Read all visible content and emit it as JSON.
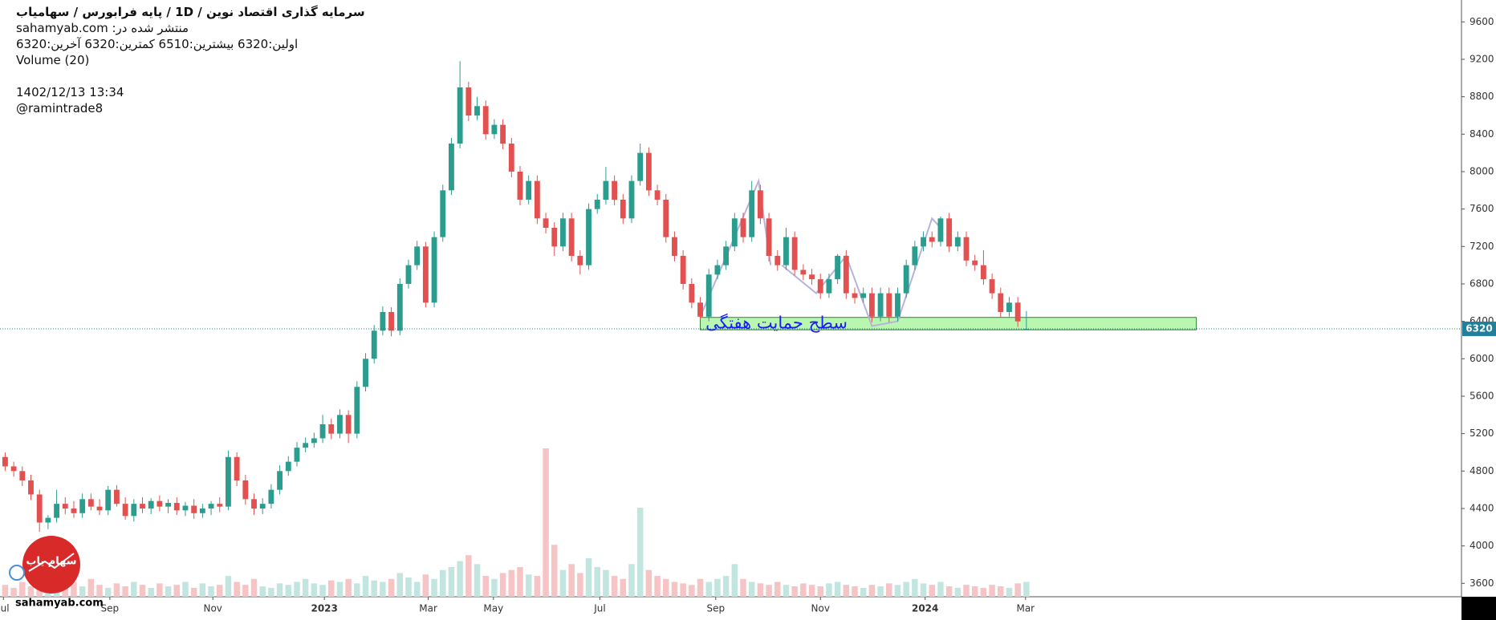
{
  "header": {
    "title": "سرمایه گذاری اقتصاد نوین /  1D  /  پایه فرابورس / سهامیاب",
    "published": "منتشر شده در: sahamyab.com",
    "ohlc_line": "اولین:6320  بیشترین:6510  کمترین:6320  آخرین:6320",
    "volume_label": "Volume (20)",
    "date": "1402/12/13 13:34",
    "author": "@ramintrade8"
  },
  "logo": {
    "name": "سهام یاب",
    "site": "sahamyab.com"
  },
  "chart_data": {
    "type": "candlestick",
    "up_color": "#2a9d8f",
    "down_color": "#e25050",
    "volume_up_color": "#c2e6df",
    "volume_down_color": "#f6c4c4",
    "xlim": [
      -0.6,
      169.7
    ],
    "ylim": [
      3457,
      9834
    ],
    "xticks": [
      {
        "value": -0.2,
        "label": "Jul"
      },
      {
        "value": 12.2,
        "label": "Sep"
      },
      {
        "value": 24.2,
        "label": "Nov"
      },
      {
        "value": 37.2,
        "label": "2023"
      },
      {
        "value": 49.3,
        "label": "Mar"
      },
      {
        "value": 56.9,
        "label": "May"
      },
      {
        "value": 69.3,
        "label": "Jul"
      },
      {
        "value": 82.8,
        "label": "Sep"
      },
      {
        "value": 95,
        "label": "Nov"
      },
      {
        "value": 107.2,
        "label": "2024"
      },
      {
        "value": 118.9,
        "label": "Mar"
      }
    ],
    "yticks": [
      3600,
      4000,
      4400,
      4800,
      5200,
      5600,
      6000,
      6400,
      6800,
      7200,
      7600,
      8000,
      8400,
      8800,
      9200,
      9600
    ],
    "last_price": 6320,
    "last_price_color": "#1f7f9c",
    "ohlc": [
      [
        4950,
        5000,
        4800,
        4850
      ],
      [
        4850,
        4900,
        4740,
        4800
      ],
      [
        4800,
        4850,
        4640,
        4700
      ],
      [
        4700,
        4760,
        4490,
        4550
      ],
      [
        4550,
        4600,
        4150,
        4250
      ],
      [
        4250,
        4330,
        4180,
        4300
      ],
      [
        4300,
        4600,
        4250,
        4450
      ],
      [
        4450,
        4520,
        4340,
        4400
      ],
      [
        4400,
        4480,
        4300,
        4350
      ],
      [
        4350,
        4560,
        4300,
        4500
      ],
      [
        4500,
        4560,
        4380,
        4420
      ],
      [
        4420,
        4500,
        4330,
        4380
      ],
      [
        4380,
        4640,
        4330,
        4600
      ],
      [
        4600,
        4650,
        4420,
        4450
      ],
      [
        4450,
        4520,
        4280,
        4320
      ],
      [
        4320,
        4500,
        4260,
        4450
      ],
      [
        4450,
        4520,
        4350,
        4400
      ],
      [
        4400,
        4510,
        4340,
        4480
      ],
      [
        4480,
        4540,
        4370,
        4420
      ],
      [
        4420,
        4500,
        4350,
        4460
      ],
      [
        4460,
        4520,
        4330,
        4380
      ],
      [
        4380,
        4470,
        4320,
        4430
      ],
      [
        4430,
        4500,
        4290,
        4350
      ],
      [
        4350,
        4450,
        4300,
        4400
      ],
      [
        4400,
        4480,
        4330,
        4450
      ],
      [
        4450,
        4520,
        4360,
        4420
      ],
      [
        4420,
        5020,
        4380,
        4950
      ],
      [
        4950,
        5000,
        4640,
        4700
      ],
      [
        4700,
        4760,
        4440,
        4500
      ],
      [
        4500,
        4560,
        4330,
        4400
      ],
      [
        4400,
        4510,
        4340,
        4450
      ],
      [
        4450,
        4660,
        4400,
        4600
      ],
      [
        4600,
        4860,
        4550,
        4800
      ],
      [
        4800,
        4960,
        4750,
        4900
      ],
      [
        4900,
        5110,
        4850,
        5050
      ],
      [
        5050,
        5160,
        5000,
        5100
      ],
      [
        5100,
        5210,
        5050,
        5150
      ],
      [
        5150,
        5400,
        5100,
        5300
      ],
      [
        5300,
        5360,
        5140,
        5200
      ],
      [
        5200,
        5460,
        5150,
        5400
      ],
      [
        5400,
        5450,
        5100,
        5200
      ],
      [
        5200,
        5760,
        5150,
        5700
      ],
      [
        5700,
        6060,
        5650,
        6000
      ],
      [
        6000,
        6360,
        5950,
        6300
      ],
      [
        6300,
        6560,
        6250,
        6500
      ],
      [
        6500,
        6550,
        6240,
        6300
      ],
      [
        6300,
        6860,
        6250,
        6800
      ],
      [
        6800,
        7060,
        6750,
        7000
      ],
      [
        7000,
        7260,
        6950,
        7200
      ],
      [
        7200,
        7250,
        6550,
        6600
      ],
      [
        6600,
        7360,
        6550,
        7300
      ],
      [
        7300,
        7860,
        7250,
        7800
      ],
      [
        7800,
        8360,
        7750,
        8300
      ],
      [
        8300,
        9180,
        8250,
        8900
      ],
      [
        8900,
        8960,
        8540,
        8600
      ],
      [
        8600,
        8800,
        8550,
        8700
      ],
      [
        8700,
        8760,
        8340,
        8400
      ],
      [
        8400,
        8560,
        8350,
        8500
      ],
      [
        8500,
        8560,
        8240,
        8300
      ],
      [
        8300,
        8360,
        7940,
        8000
      ],
      [
        8000,
        8060,
        7640,
        7700
      ],
      [
        7700,
        7960,
        7650,
        7900
      ],
      [
        7900,
        7960,
        7440,
        7500
      ],
      [
        7500,
        7560,
        7340,
        7400
      ],
      [
        7400,
        7460,
        7100,
        7200
      ],
      [
        7200,
        7560,
        7150,
        7500
      ],
      [
        7500,
        7560,
        7040,
        7100
      ],
      [
        7100,
        7160,
        6900,
        7000
      ],
      [
        7000,
        7660,
        6950,
        7600
      ],
      [
        7600,
        7760,
        7550,
        7700
      ],
      [
        7700,
        8050,
        7650,
        7900
      ],
      [
        7900,
        7960,
        7640,
        7700
      ],
      [
        7700,
        7760,
        7440,
        7500
      ],
      [
        7500,
        7960,
        7450,
        7900
      ],
      [
        7900,
        8300,
        7850,
        8200
      ],
      [
        8200,
        8260,
        7740,
        7800
      ],
      [
        7800,
        7860,
        7640,
        7700
      ],
      [
        7700,
        7760,
        7240,
        7300
      ],
      [
        7300,
        7360,
        7040,
        7100
      ],
      [
        7100,
        7160,
        6740,
        6800
      ],
      [
        6800,
        6860,
        6540,
        6600
      ],
      [
        6600,
        6660,
        6420,
        6450
      ],
      [
        6450,
        6960,
        6400,
        6900
      ],
      [
        6900,
        7060,
        6850,
        7000
      ],
      [
        7000,
        7260,
        6950,
        7200
      ],
      [
        7200,
        7560,
        7150,
        7500
      ],
      [
        7500,
        7560,
        7240,
        7300
      ],
      [
        7300,
        7900,
        7250,
        7800
      ],
      [
        7800,
        7860,
        7440,
        7500
      ],
      [
        7500,
        7560,
        7040,
        7100
      ],
      [
        7100,
        7160,
        6940,
        7000
      ],
      [
        7000,
        7400,
        6950,
        7300
      ],
      [
        7300,
        7360,
        6890,
        6950
      ],
      [
        6950,
        7010,
        6840,
        6900
      ],
      [
        6900,
        6960,
        6790,
        6850
      ],
      [
        6850,
        6910,
        6640,
        6700
      ],
      [
        6700,
        6910,
        6650,
        6850
      ],
      [
        6850,
        7120,
        6800,
        7100
      ],
      [
        7100,
        7160,
        6640,
        6700
      ],
      [
        6700,
        6760,
        6590,
        6650
      ],
      [
        6650,
        6760,
        6600,
        6700
      ],
      [
        6700,
        6760,
        6390,
        6450
      ],
      [
        6450,
        6760,
        6400,
        6700
      ],
      [
        6700,
        6760,
        6390,
        6450
      ],
      [
        6450,
        6760,
        6400,
        6700
      ],
      [
        6700,
        7060,
        6650,
        7000
      ],
      [
        7000,
        7260,
        6950,
        7200
      ],
      [
        7200,
        7360,
        7150,
        7300
      ],
      [
        7300,
        7360,
        7190,
        7250
      ],
      [
        7250,
        7520,
        7200,
        7500
      ],
      [
        7500,
        7560,
        7140,
        7200
      ],
      [
        7200,
        7360,
        7150,
        7300
      ],
      [
        7300,
        7360,
        6990,
        7050
      ],
      [
        7050,
        7110,
        6940,
        7000
      ],
      [
        7000,
        7160,
        6790,
        6850
      ],
      [
        6850,
        6910,
        6640,
        6700
      ],
      [
        6700,
        6760,
        6440,
        6500
      ],
      [
        6500,
        6660,
        6450,
        6600
      ],
      [
        6600,
        6660,
        6340,
        6400
      ],
      [
        6320,
        6510,
        6320,
        6320
      ]
    ],
    "volume": [
      8,
      6,
      10,
      7,
      12,
      9,
      8,
      6,
      10,
      7,
      12,
      8,
      6,
      9,
      7,
      10,
      8,
      6,
      9,
      7,
      8,
      10,
      6,
      9,
      7,
      8,
      14,
      10,
      8,
      12,
      7,
      6,
      9,
      8,
      10,
      12,
      9,
      8,
      11,
      10,
      12,
      9,
      14,
      11,
      10,
      12,
      16,
      13,
      10,
      15,
      12,
      18,
      20,
      24,
      28,
      22,
      14,
      12,
      16,
      18,
      20,
      15,
      14,
      100,
      35,
      18,
      22,
      16,
      26,
      20,
      18,
      14,
      12,
      22,
      60,
      18,
      14,
      12,
      10,
      9,
      8,
      12,
      10,
      12,
      14,
      22,
      12,
      10,
      9,
      8,
      10,
      8,
      7,
      9,
      8,
      7,
      9,
      10,
      8,
      7,
      6,
      8,
      7,
      9,
      8,
      10,
      12,
      9,
      8,
      10,
      7,
      6,
      8,
      7,
      6,
      8,
      7,
      6,
      9,
      10
    ],
    "zone": {
      "start": 81,
      "end": 138.8,
      "low": 6310,
      "high": 6442,
      "label": "سطح حمایت هفتگی",
      "color": "#b9f7b0",
      "label_color": "#1a1aff"
    },
    "drawings": {
      "color": "#b9b3dc",
      "lines": [
        {
          "x": [
            81,
            87.8,
            89.2
          ],
          "y": [
            6450,
            7900,
            7000
          ]
        },
        {
          "x": [
            90.5,
            94.5,
            98,
            101,
            104,
            108,
            109
          ],
          "y": [
            7000,
            6700,
            7100,
            6350,
            6400,
            7500,
            7400
          ]
        }
      ]
    }
  }
}
